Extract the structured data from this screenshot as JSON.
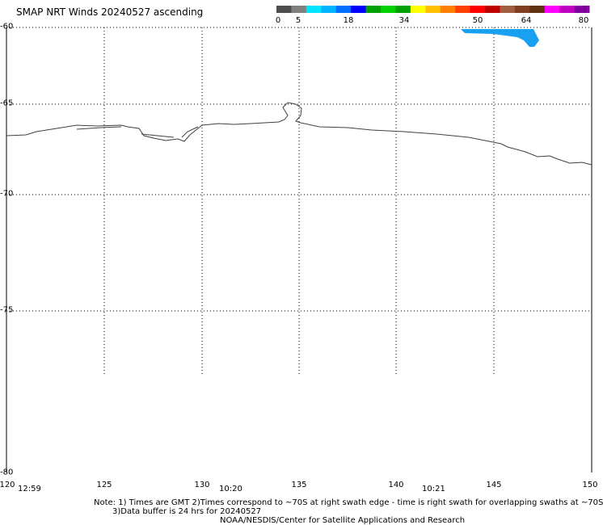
{
  "title": "SMAP NRT Winds 20240527 ascending",
  "colorbar": {
    "labels": [
      "0",
      "5",
      "18",
      "34",
      "50",
      "64",
      "80"
    ],
    "segments": [
      "#4d4d4d",
      "#808080",
      "#00e5ff",
      "#00b4ff",
      "#0070ff",
      "#0000ff",
      "#00a000",
      "#00d000",
      "#00a000",
      "#ffff00",
      "#ffc000",
      "#ff8000",
      "#ff4000",
      "#ff0000",
      "#c00000",
      "#a06040",
      "#804020",
      "#603010",
      "#ff00ff",
      "#c000c0",
      "#8000a0"
    ]
  },
  "map": {
    "lat_labels": [
      "-60",
      "-65",
      "-70",
      "-75",
      "-80"
    ],
    "lon_labels": [
      "120",
      "125",
      "130",
      "135",
      "140",
      "145",
      "150"
    ],
    "times": [
      "12:59",
      "10:20",
      "10:21"
    ],
    "coastline_color": "#404040",
    "wind_swath_color": "#1aa0f0"
  },
  "notes": {
    "line1": "Note: 1) Times are GMT 2)Times correspond to ~70S at right swath edge - time is right swath for overlapping swaths at ~70S",
    "line2": "3)Data buffer is 24 hrs for 20240527",
    "line3": "NOAA/NESDIS/Center for Satellite Applications and Research"
  }
}
